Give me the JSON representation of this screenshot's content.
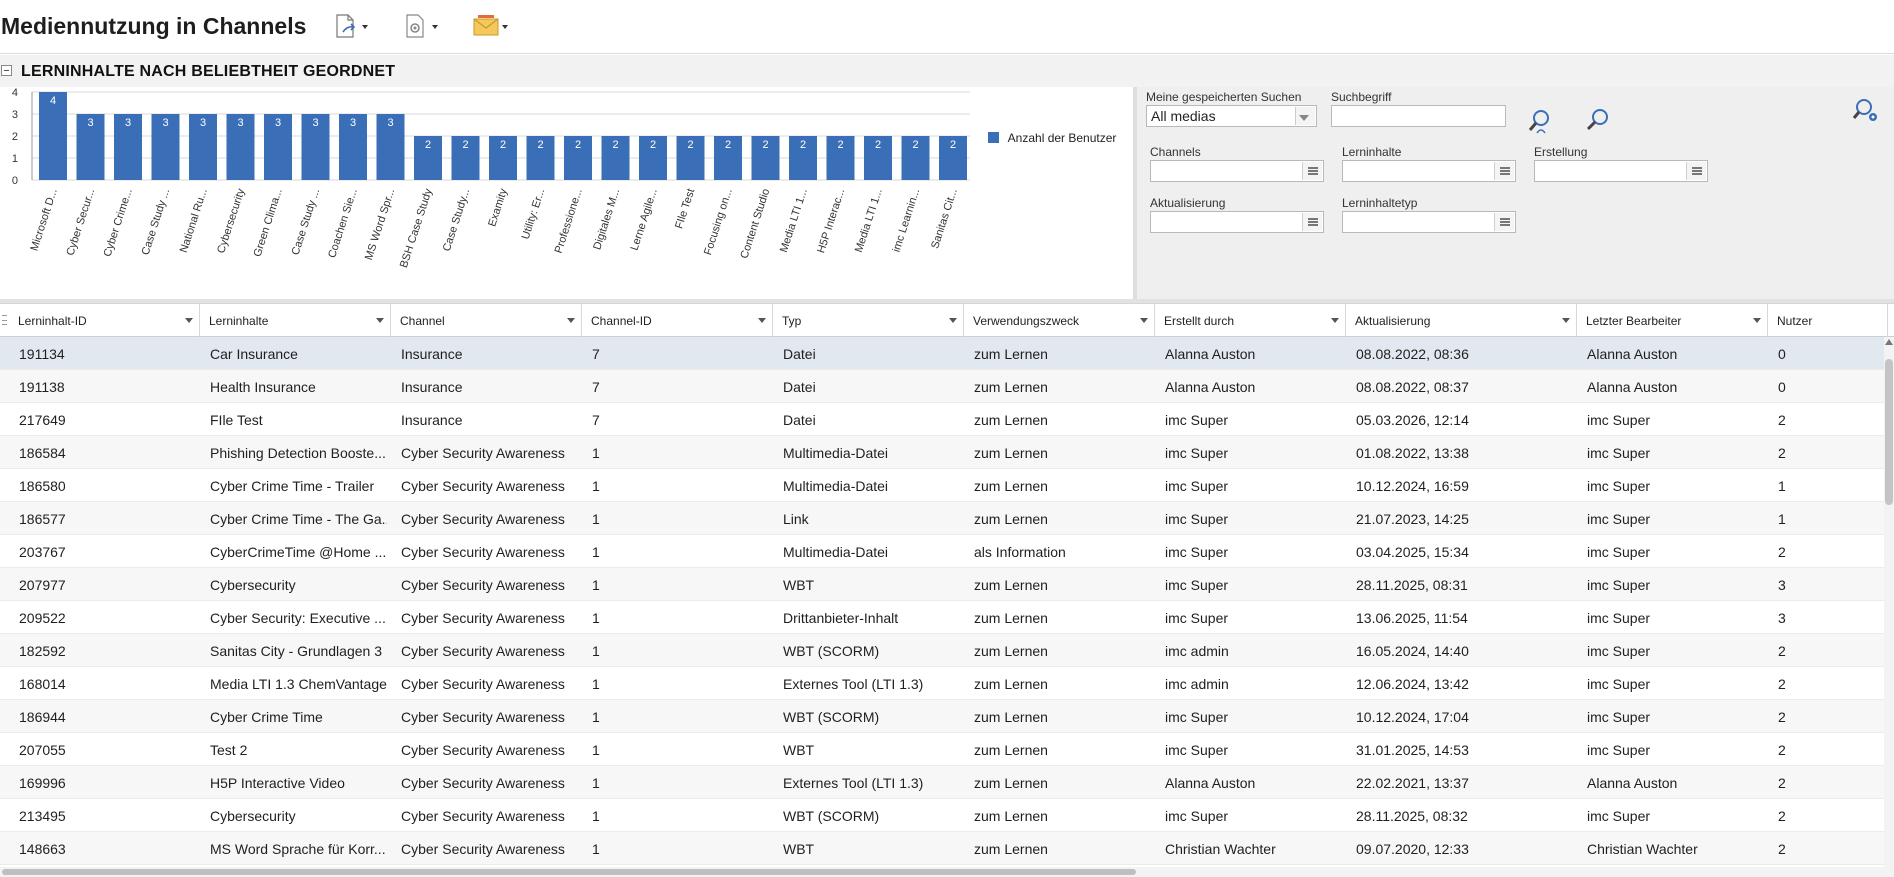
{
  "header": {
    "title": "Mediennutzung in Channels",
    "toolbar": [
      {
        "name": "export-icon"
      },
      {
        "name": "settings-icon"
      },
      {
        "name": "mail-icon"
      }
    ]
  },
  "section": {
    "title": "LERNINHALTE NACH BELIEBTHEIT GEORDNET"
  },
  "chart_data": {
    "type": "bar",
    "categories": [
      "Microsoft D...",
      "Cyber Secur...",
      "Cyber Crime...",
      "Case Study ...",
      "National Ru...",
      "Cybersecurity",
      "Green Clima...",
      "Case Study ...",
      "Coachen Sie...",
      "MS Word Spr...",
      "BSH Case Study",
      "Case Study...",
      "Examity",
      "Utility: Er...",
      "Professione...",
      "Digitales M...",
      "Lerne Agile...",
      "FIle Test",
      "Focusing on...",
      "Content Studio",
      "Media LTI 1...",
      "H5P Interac...",
      "Media LTI 1...",
      "imc Learnin...",
      "Sanitas Cit..."
    ],
    "series": [
      {
        "name": "Anzahl der Benutzer",
        "values": [
          4,
          3,
          3,
          3,
          3,
          3,
          3,
          3,
          3,
          3,
          2,
          2,
          2,
          2,
          2,
          2,
          2,
          2,
          2,
          2,
          2,
          2,
          2,
          2,
          2
        ]
      }
    ],
    "yticks": [
      "0",
      "1",
      "2",
      "3",
      "4"
    ],
    "ylim": [
      0,
      4
    ],
    "legend": "right",
    "grid": true,
    "color": "#3a6fb7"
  },
  "search": {
    "saved_label": "Meine gespeicherten Suchen",
    "saved_value": "All medias",
    "term_label": "Suchbegriff",
    "term_value": "",
    "channels_label": "Channels",
    "lerninhalte_label": "Lerninhalte",
    "erstellung_label": "Erstellung",
    "aktualisierung_label": "Aktualisierung",
    "lerninhaltetyp_label": "Lerninhaltetyp"
  },
  "grid": {
    "columns": [
      "Lerninhalt-ID",
      "Lerninhalte",
      "Channel",
      "Channel-ID",
      "Typ",
      "Verwendungszweck",
      "Erstellt durch",
      "Aktualisierung",
      "Letzter Bearbeiter",
      "Nutzer"
    ],
    "rows": [
      [
        "191134",
        "Car Insurance",
        "Insurance",
        "7",
        "Datei",
        "zum Lernen",
        "Alanna Auston",
        "08.08.2022, 08:36",
        "Alanna Auston",
        "0"
      ],
      [
        "191138",
        "Health Insurance",
        "Insurance",
        "7",
        "Datei",
        "zum Lernen",
        "Alanna Auston",
        "08.08.2022, 08:37",
        "Alanna Auston",
        "0"
      ],
      [
        "217649",
        "FIle Test",
        "Insurance",
        "7",
        "Datei",
        "zum Lernen",
        "imc Super",
        "05.03.2026, 12:14",
        "imc Super",
        "2"
      ],
      [
        "186584",
        "Phishing Detection Booste...",
        "Cyber Security Awareness",
        "1",
        "Multimedia-Datei",
        "zum Lernen",
        "imc Super",
        "01.08.2022, 13:38",
        "imc Super",
        "2"
      ],
      [
        "186580",
        "Cyber Crime Time - Trailer",
        "Cyber Security Awareness",
        "1",
        "Multimedia-Datei",
        "zum Lernen",
        "imc Super",
        "10.12.2024, 16:59",
        "imc Super",
        "1"
      ],
      [
        "186577",
        "Cyber Crime Time - The Ga...",
        "Cyber Security Awareness",
        "1",
        "Link",
        "zum Lernen",
        "imc Super",
        "21.07.2023, 14:25",
        "imc Super",
        "1"
      ],
      [
        "203767",
        "CyberCrimeTime @Home ...",
        "Cyber Security Awareness",
        "1",
        "Multimedia-Datei",
        "als Information",
        "imc Super",
        "03.04.2025, 15:34",
        "imc Super",
        "2"
      ],
      [
        "207977",
        "Cybersecurity",
        "Cyber Security Awareness",
        "1",
        "WBT",
        "zum Lernen",
        "imc Super",
        "28.11.2025, 08:31",
        "imc Super",
        "3"
      ],
      [
        "209522",
        "Cyber Security: Executive ...",
        "Cyber Security Awareness",
        "1",
        "Drittanbieter-Inhalt",
        "zum Lernen",
        "imc Super",
        "13.06.2025, 11:54",
        "imc Super",
        "3"
      ],
      [
        "182592",
        "Sanitas City - Grundlagen 3",
        "Cyber Security Awareness",
        "1",
        "WBT (SCORM)",
        "zum Lernen",
        "imc admin",
        "16.05.2024, 14:40",
        "imc Super",
        "2"
      ],
      [
        "168014",
        "Media LTI 1.3 ChemVantage",
        "Cyber Security Awareness",
        "1",
        "Externes Tool (LTI 1.3)",
        "zum Lernen",
        "imc admin",
        "12.06.2024, 13:42",
        "imc Super",
        "2"
      ],
      [
        "186944",
        "Cyber Crime Time",
        "Cyber Security Awareness",
        "1",
        "WBT (SCORM)",
        "zum Lernen",
        "imc Super",
        "10.12.2024, 17:04",
        "imc Super",
        "2"
      ],
      [
        "207055",
        "Test 2",
        "Cyber Security Awareness",
        "1",
        "WBT",
        "zum Lernen",
        "imc Super",
        "31.01.2025, 14:53",
        "imc Super",
        "2"
      ],
      [
        "169996",
        "H5P Interactive Video",
        "Cyber Security Awareness",
        "1",
        "Externes Tool (LTI 1.3)",
        "zum Lernen",
        "Alanna Auston",
        "22.02.2021, 13:37",
        "Alanna Auston",
        "2"
      ],
      [
        "213495",
        "Cybersecurity",
        "Cyber Security Awareness",
        "1",
        "WBT (SCORM)",
        "zum Lernen",
        "imc Super",
        "28.11.2025, 08:32",
        "imc Super",
        "2"
      ],
      [
        "148663",
        "MS Word Sprache für Korr...",
        "Cyber Security Awareness",
        "1",
        "WBT",
        "zum Lernen",
        "Christian Wachter",
        "09.07.2020, 12:33",
        "Christian Wachter",
        "2"
      ]
    ]
  }
}
